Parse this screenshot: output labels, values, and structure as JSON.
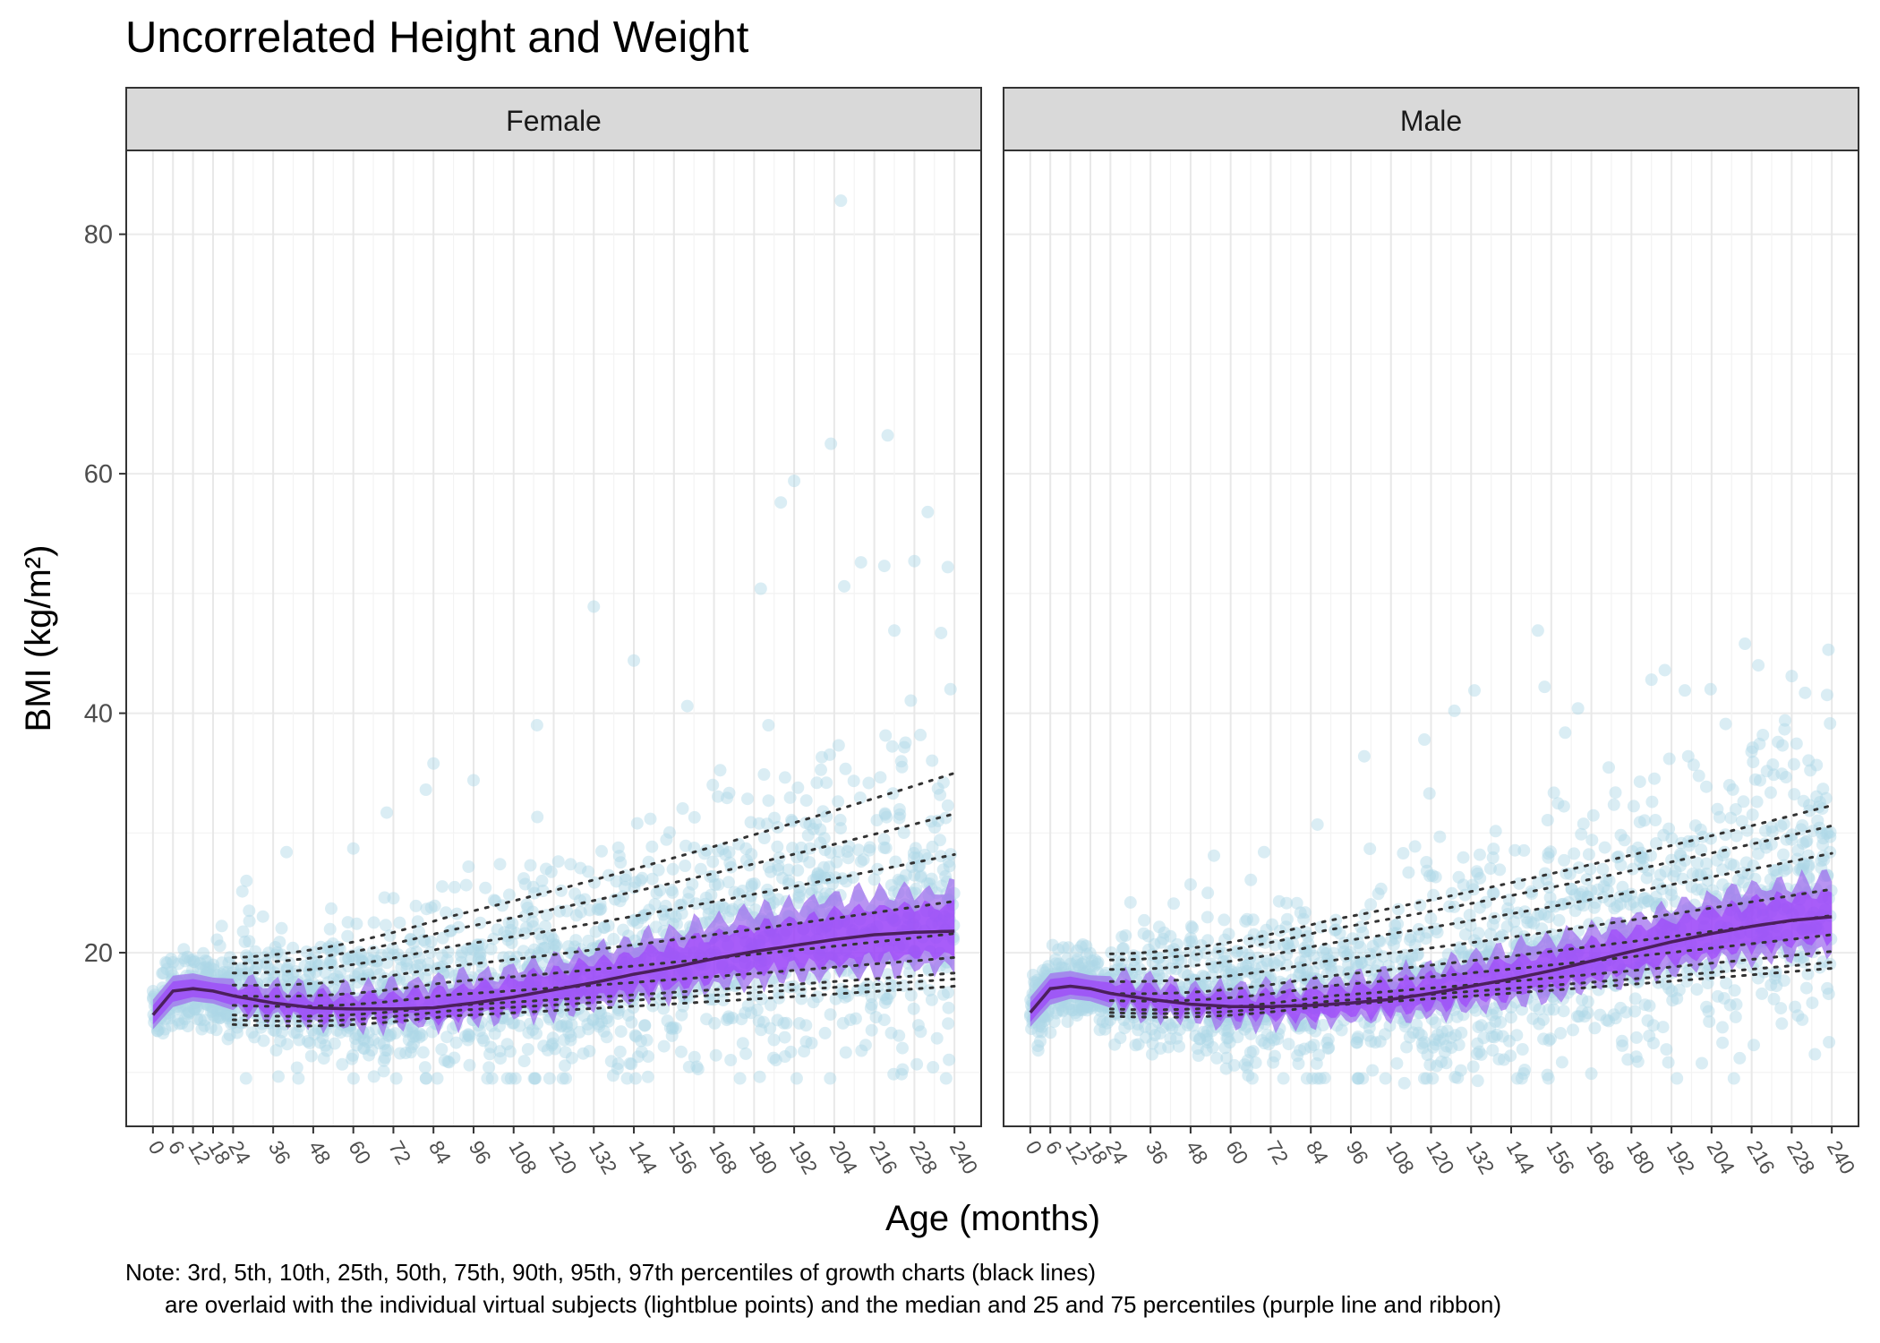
{
  "chart_data": {
    "type": "scatter",
    "title": "Uncorrelated Height and Weight",
    "xlabel": "Age (months)",
    "ylabel": "BMI (kg/m²)",
    "xlim": [
      -8,
      248
    ],
    "ylim": [
      5.5,
      87
    ],
    "y_ticks": [
      20,
      40,
      60,
      80
    ],
    "x_ticks": [
      0,
      6,
      12,
      18,
      24,
      36,
      48,
      60,
      72,
      84,
      96,
      108,
      120,
      132,
      144,
      156,
      168,
      180,
      192,
      204,
      216,
      228,
      240
    ],
    "x_tick_labels": [
      "0",
      "6",
      "12",
      "18",
      "24",
      "36",
      "48",
      "60",
      "72",
      "84",
      "96",
      "108",
      "120",
      "132",
      "144",
      "156",
      "168",
      "180",
      "192",
      "204",
      "216",
      "228",
      "240"
    ],
    "grid": true,
    "legend": "none",
    "colors": {
      "points": "#add8e6",
      "median": "#4b1f5c",
      "ribbon_outer": "#a070ee",
      "ribbon_inner": "#9b30ff",
      "percentile_lines": "#333333"
    },
    "percentile_ages": [
      24,
      240
    ],
    "panels": [
      {
        "name": "Female",
        "median_x": [
          0,
          6,
          12,
          18,
          24,
          36,
          48,
          60,
          72,
          84,
          96,
          108,
          120,
          132,
          144,
          156,
          168,
          180,
          192,
          204,
          216,
          228,
          240
        ],
        "median_y": [
          14.8,
          16.8,
          17.0,
          16.8,
          16.4,
          15.8,
          15.4,
          15.3,
          15.3,
          15.4,
          15.8,
          16.3,
          16.9,
          17.5,
          18.2,
          18.8,
          19.5,
          20.1,
          20.6,
          21.1,
          21.5,
          21.7,
          21.8
        ],
        "q25_y": [
          14.0,
          15.9,
          16.3,
          16.1,
          15.6,
          15.0,
          14.6,
          14.4,
          14.4,
          14.5,
          14.8,
          15.2,
          15.7,
          16.2,
          16.8,
          17.3,
          17.9,
          18.4,
          18.8,
          19.2,
          19.5,
          19.7,
          19.8
        ],
        "q75_y": [
          15.6,
          17.6,
          17.8,
          17.5,
          17.3,
          16.7,
          16.4,
          16.4,
          16.5,
          16.8,
          17.2,
          17.8,
          18.5,
          19.2,
          20.0,
          20.7,
          21.5,
          22.2,
          22.8,
          23.3,
          23.7,
          23.9,
          24.0
        ],
        "percentiles": [
          {
            "name": "3rd",
            "y": [
              14.0,
              17.2
            ]
          },
          {
            "name": "5th",
            "y": [
              14.4,
              17.8
            ]
          },
          {
            "name": "10th",
            "y": [
              14.8,
              18.3
            ]
          },
          {
            "name": "25th",
            "y": [
              15.6,
              19.6
            ]
          },
          {
            "name": "50th",
            "y": [
              16.4,
              21.6
            ]
          },
          {
            "name": "75th",
            "y": [
              17.3,
              24.3
            ]
          },
          {
            "name": "90th",
            "y": [
              18.3,
              28.2
            ]
          },
          {
            "name": "95th",
            "y": [
              19.1,
              31.6
            ]
          },
          {
            "name": "97th",
            "y": [
              19.6,
              35.0
            ]
          }
        ],
        "outliers": [
          {
            "x": 206,
            "y": 82.8
          },
          {
            "x": 220,
            "y": 63.2
          },
          {
            "x": 203,
            "y": 62.5
          },
          {
            "x": 192,
            "y": 59.4
          },
          {
            "x": 188,
            "y": 57.6
          },
          {
            "x": 232,
            "y": 56.8
          },
          {
            "x": 228,
            "y": 52.7
          },
          {
            "x": 238,
            "y": 52.2
          },
          {
            "x": 212,
            "y": 52.6
          },
          {
            "x": 219,
            "y": 52.3
          },
          {
            "x": 182,
            "y": 50.4
          },
          {
            "x": 207,
            "y": 50.6
          },
          {
            "x": 132,
            "y": 48.9
          },
          {
            "x": 236,
            "y": 46.7
          },
          {
            "x": 222,
            "y": 46.9
          },
          {
            "x": 144,
            "y": 44.4
          },
          {
            "x": 160,
            "y": 40.6
          },
          {
            "x": 115,
            "y": 39.0
          },
          {
            "x": 84,
            "y": 35.8
          },
          {
            "x": 96,
            "y": 34.4
          },
          {
            "x": 70,
            "y": 31.7
          },
          {
            "x": 60,
            "y": 28.7
          },
          {
            "x": 40,
            "y": 28.4
          },
          {
            "x": 28,
            "y": 26.0
          }
        ]
      },
      {
        "name": "Male",
        "median_x": [
          0,
          6,
          12,
          18,
          24,
          36,
          48,
          60,
          72,
          84,
          96,
          108,
          120,
          132,
          144,
          156,
          168,
          180,
          192,
          204,
          216,
          228,
          240
        ],
        "median_y": [
          15.0,
          17.0,
          17.2,
          17.0,
          16.6,
          16.1,
          15.7,
          15.5,
          15.5,
          15.6,
          15.8,
          16.1,
          16.6,
          17.2,
          17.8,
          18.5,
          19.3,
          20.1,
          20.9,
          21.6,
          22.2,
          22.7,
          23.0
        ],
        "q25_y": [
          14.2,
          16.1,
          16.5,
          16.3,
          15.8,
          15.2,
          14.9,
          14.6,
          14.6,
          14.7,
          14.9,
          15.1,
          15.5,
          16.0,
          16.5,
          17.1,
          17.8,
          18.6,
          19.3,
          19.9,
          20.4,
          20.8,
          21.1
        ],
        "q75_y": [
          15.8,
          17.8,
          18.0,
          17.7,
          17.5,
          17.0,
          16.6,
          16.5,
          16.6,
          16.8,
          17.1,
          17.5,
          18.0,
          18.7,
          19.4,
          20.2,
          21.0,
          21.9,
          22.7,
          23.5,
          24.2,
          24.7,
          25.0
        ],
        "percentiles": [
          {
            "name": "3rd",
            "y": [
              14.7,
              18.7
            ]
          },
          {
            "name": "5th",
            "y": [
              15.0,
              19.2
            ]
          },
          {
            "name": "10th",
            "y": [
              15.3,
              20.1
            ]
          },
          {
            "name": "25th",
            "y": [
              16.0,
              21.5
            ]
          },
          {
            "name": "50th",
            "y": [
              16.6,
              23.1
            ]
          },
          {
            "name": "75th",
            "y": [
              17.6,
              25.3
            ]
          },
          {
            "name": "90th",
            "y": [
              18.6,
              28.3
            ]
          },
          {
            "name": "95th",
            "y": [
              19.4,
              30.6
            ]
          },
          {
            "name": "97th",
            "y": [
              19.9,
              32.3
            ]
          }
        ],
        "outliers": [
          {
            "x": 152,
            "y": 46.9
          },
          {
            "x": 214,
            "y": 45.8
          },
          {
            "x": 239,
            "y": 45.3
          },
          {
            "x": 190,
            "y": 43.6
          },
          {
            "x": 218,
            "y": 44.0
          },
          {
            "x": 228,
            "y": 43.1
          },
          {
            "x": 186,
            "y": 42.8
          },
          {
            "x": 133,
            "y": 41.9
          },
          {
            "x": 154,
            "y": 42.2
          },
          {
            "x": 196,
            "y": 41.9
          },
          {
            "x": 232,
            "y": 41.7
          },
          {
            "x": 127,
            "y": 40.2
          },
          {
            "x": 164,
            "y": 40.4
          },
          {
            "x": 226,
            "y": 39.4
          },
          {
            "x": 100,
            "y": 36.4
          },
          {
            "x": 118,
            "y": 37.8
          },
          {
            "x": 70,
            "y": 28.4
          },
          {
            "x": 86,
            "y": 30.7
          },
          {
            "x": 30,
            "y": 24.2
          },
          {
            "x": 48,
            "y": 25.7
          },
          {
            "x": 168,
            "y": 9.9
          },
          {
            "x": 182,
            "y": 10.9
          },
          {
            "x": 112,
            "y": 9.1
          },
          {
            "x": 134,
            "y": 9.3
          }
        ]
      }
    ]
  },
  "note": {
    "line1": "Note: 3rd, 5th, 10th, 25th, 50th, 75th, 90th, 95th, 97th percentiles of growth charts (black lines)",
    "line2": "are overlaid with the individual virtual subjects (lightblue points) and the median and 25 and 75 percentiles (purple line and ribbon)"
  }
}
